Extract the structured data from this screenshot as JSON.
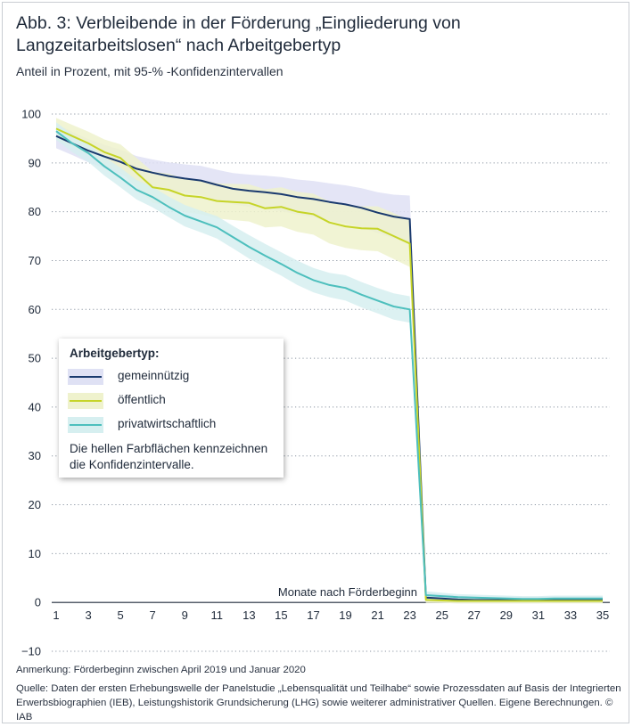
{
  "title": "Abb. 3: Verbleibende in der Förderung „Eingliederung von Langzeitarbeitslosen“ nach Arbeitgebertyp",
  "subtitle": "Anteil in Prozent, mit 95-% -Konfidenzintervallen",
  "legend": {
    "title": "Arbeitgebertyp:",
    "items": [
      {
        "label": "gemeinnützig",
        "color": "#1a3a6e",
        "band": "#dfe1f4"
      },
      {
        "label": "öffentlich",
        "color": "#c6d428",
        "band": "#eff2cd"
      },
      {
        "label": "privatwirtschaftlich",
        "color": "#4dbfbd",
        "band": "#d6eff0"
      }
    ],
    "note": "Die hellen Farbflächen kennzeichnen die Konfidenzintervalle."
  },
  "footer": {
    "note": "Anmerkung: Förderbeginn zwischen April 2019 und Januar 2020",
    "source": "Quelle: Daten der ersten Erhebungswelle der Panelstudie „Lebensqualität und Teilhabe“ sowie Prozessdaten auf Basis der Integrierten Erwerbsbiographien (IEB), Leistungshistorik Grundsicherung (LHG) sowie weiterer administrativer Quellen. Eigene Berechnungen. © IAB"
  },
  "chart_data": {
    "type": "line",
    "xlabel": "Monate nach Förderbeginn",
    "ylabel": "",
    "xlim": [
      1,
      35
    ],
    "ylim": [
      -10,
      100
    ],
    "x_ticks": [
      1,
      3,
      5,
      7,
      9,
      11,
      13,
      15,
      17,
      19,
      21,
      23,
      25,
      27,
      29,
      31,
      33,
      35
    ],
    "y_ticks": [
      -10,
      0,
      10,
      20,
      30,
      40,
      50,
      60,
      70,
      80,
      90,
      100
    ],
    "grid": "horizontal dotted",
    "legend_position": "left-middle",
    "x": [
      1,
      2,
      3,
      4,
      5,
      6,
      7,
      8,
      9,
      10,
      11,
      12,
      13,
      14,
      15,
      16,
      17,
      18,
      19,
      20,
      21,
      22,
      23,
      24,
      25,
      26,
      27,
      28,
      29,
      30,
      31,
      32,
      33,
      34,
      35
    ],
    "series": [
      {
        "name": "gemeinnützig",
        "color": "#1a3a6e",
        "band_color": "#dfe1f4",
        "values": [
          95.5,
          94.0,
          92.5,
          91.3,
          90.2,
          88.8,
          88.0,
          87.3,
          86.8,
          86.4,
          85.5,
          84.7,
          84.3,
          84.0,
          83.6,
          83.0,
          82.6,
          82.0,
          81.5,
          80.8,
          79.8,
          79.0,
          78.5,
          1.0,
          0.8,
          0.6,
          0.5,
          0.5,
          0.5,
          0.5,
          0.5,
          0.6,
          0.6,
          0.6,
          0.6
        ],
        "ci_half": [
          2.5,
          2.4,
          2.4,
          2.4,
          2.5,
          2.6,
          2.7,
          2.8,
          2.9,
          3.0,
          3.1,
          3.2,
          3.3,
          3.4,
          3.5,
          3.6,
          3.7,
          3.8,
          3.9,
          4.0,
          4.2,
          4.5,
          4.8,
          1.0,
          0.9,
          0.8,
          0.7,
          0.7,
          0.7,
          0.7,
          0.7,
          0.7,
          0.7,
          0.7,
          0.7
        ]
      },
      {
        "name": "öffentlich",
        "color": "#c6d428",
        "band_color": "#eff2cd",
        "values": [
          97.0,
          95.5,
          94.0,
          92.2,
          91.0,
          88.0,
          85.0,
          84.5,
          83.3,
          83.0,
          82.2,
          82.0,
          81.8,
          80.7,
          81.0,
          80.0,
          79.5,
          77.8,
          77.0,
          76.6,
          76.5,
          75.0,
          73.5,
          0.5,
          0.4,
          0.3,
          0.3,
          0.3,
          0.3,
          0.3,
          0.3,
          0.3,
          0.3,
          0.3,
          0.3
        ],
        "ci_half": [
          2.2,
          2.3,
          2.4,
          2.6,
          2.8,
          3.0,
          3.2,
          3.3,
          3.4,
          3.5,
          3.6,
          3.7,
          3.8,
          3.9,
          4.0,
          4.1,
          4.2,
          4.3,
          4.4,
          4.5,
          4.6,
          4.7,
          4.8,
          0.6,
          0.5,
          0.5,
          0.5,
          0.5,
          0.5,
          0.5,
          0.5,
          0.5,
          0.5,
          0.5,
          0.5
        ]
      },
      {
        "name": "privatwirtschaftlich",
        "color": "#4dbfbd",
        "band_color": "#d6eff0",
        "values": [
          96.5,
          94.0,
          92.0,
          89.3,
          87.0,
          84.5,
          83.0,
          81.0,
          79.2,
          78.0,
          76.8,
          74.8,
          72.8,
          71.0,
          69.3,
          67.5,
          66.0,
          65.0,
          64.4,
          63.0,
          61.8,
          60.6,
          60.0,
          1.5,
          1.3,
          1.1,
          1.0,
          0.9,
          0.8,
          0.7,
          0.7,
          0.8,
          0.8,
          0.8,
          0.8
        ],
        "ci_half": [
          1.8,
          1.8,
          1.8,
          1.9,
          2.0,
          2.0,
          2.1,
          2.1,
          2.2,
          2.2,
          2.3,
          2.3,
          2.4,
          2.4,
          2.4,
          2.5,
          2.5,
          2.5,
          2.6,
          2.6,
          2.6,
          2.7,
          2.7,
          0.8,
          0.7,
          0.6,
          0.6,
          0.6,
          0.6,
          0.6,
          0.6,
          0.6,
          0.6,
          0.6,
          0.6
        ]
      }
    ]
  }
}
